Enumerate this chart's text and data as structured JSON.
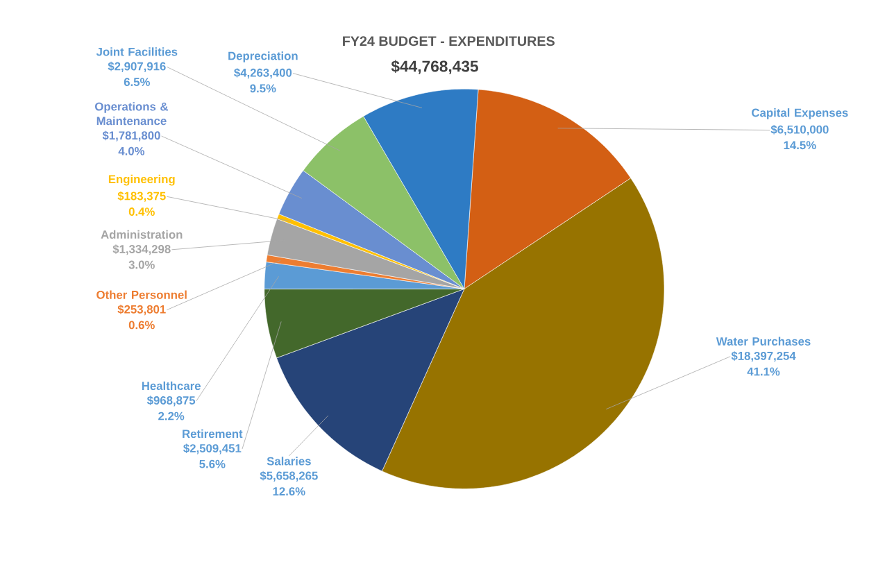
{
  "chart_data": {
    "type": "pie",
    "title": "FY24 BUDGET - EXPENDITURES",
    "subtitle": "$44,768,435",
    "categories": [
      "Capital Expenses",
      "Water Purchases",
      "Salaries",
      "Retirement",
      "Healthcare",
      "Other Personnel",
      "Administration",
      "Engineering",
      "Operations & Maintenance",
      "Joint Facilities",
      "Depreciation"
    ],
    "values": [
      6510000,
      18397254,
      5658265,
      2509451,
      968875,
      253801,
      1334298,
      183375,
      1781800,
      2907916,
      4263400
    ],
    "colors": [
      "#d35f14",
      "#977300",
      "#264478",
      "#43682b",
      "#5b9bd5",
      "#ed7d31",
      "#a5a5a5",
      "#ffc000",
      "#698ed0",
      "#8cc168",
      "#2e7bc4"
    ],
    "value_labels": [
      "$6,510,000",
      "$18,397,254",
      "$5,658,265",
      "$2,509,451",
      "$968,875",
      "$253,801",
      "$1,334,298",
      "$183,375",
      "$1,781,800",
      "$2,907,916",
      "$4,263,400"
    ],
    "annotations": [
      "14.5%",
      "41.1%",
      "12.6%",
      "5.6%",
      "2.2%",
      "0.6%",
      "3.0%",
      "0.4%",
      "4.0%",
      "6.5%",
      "9.5%"
    ]
  }
}
